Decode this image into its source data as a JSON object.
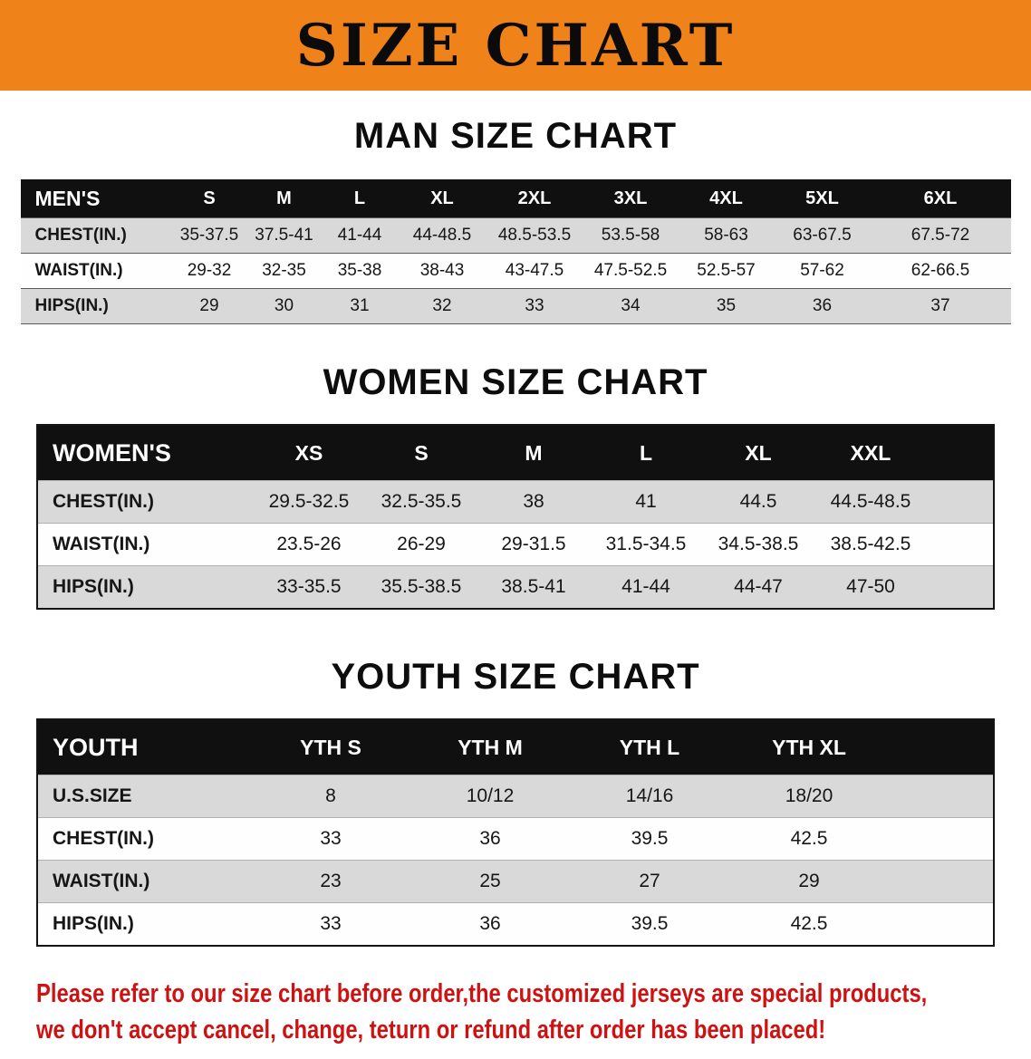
{
  "banner": {
    "title": "SIZE CHART"
  },
  "sections": {
    "men": {
      "heading": "MAN SIZE CHART"
    },
    "women": {
      "heading": "WOMEN SIZE CHART"
    },
    "youth": {
      "heading": "YOUTH SIZE CHART"
    }
  },
  "tables": {
    "men": {
      "header": [
        "MEN'S",
        "S",
        "M",
        "L",
        "XL",
        "2XL",
        "3XL",
        "4XL",
        "5XL",
        "6XL"
      ],
      "rows": [
        {
          "label": "CHEST(IN.)",
          "values": [
            "35-37.5",
            "37.5-41",
            "41-44",
            "44-48.5",
            "48.5-53.5",
            "53.5-58",
            "58-63",
            "63-67.5",
            "67.5-72"
          ]
        },
        {
          "label": "WAIST(IN.)",
          "values": [
            "29-32",
            "32-35",
            "35-38",
            "38-43",
            "43-47.5",
            "47.5-52.5",
            "52.5-57",
            "57-62",
            "62-66.5"
          ]
        },
        {
          "label": "HIPS(IN.)",
          "values": [
            "29",
            "30",
            "31",
            "32",
            "33",
            "34",
            "35",
            "36",
            "37"
          ]
        }
      ]
    },
    "women": {
      "header": [
        "WOMEN'S",
        "XS",
        "S",
        "M",
        "L",
        "XL",
        "XXL"
      ],
      "rows": [
        {
          "label": "CHEST(IN.)",
          "values": [
            "29.5-32.5",
            "32.5-35.5",
            "38",
            "41",
            "44.5",
            "44.5-48.5"
          ]
        },
        {
          "label": "WAIST(IN.)",
          "values": [
            "23.5-26",
            "26-29",
            "29-31.5",
            "31.5-34.5",
            "34.5-38.5",
            "38.5-42.5"
          ]
        },
        {
          "label": "HIPS(IN.)",
          "values": [
            "33-35.5",
            "35.5-38.5",
            "38.5-41",
            "41-44",
            "44-47",
            "47-50"
          ]
        }
      ]
    },
    "youth": {
      "header": [
        "YOUTH",
        "YTH S",
        "YTH M",
        "YTH L",
        "YTH XL"
      ],
      "rows": [
        {
          "label": "U.S.SIZE",
          "values": [
            "8",
            "10/12",
            "14/16",
            "18/20"
          ]
        },
        {
          "label": "CHEST(IN.)",
          "values": [
            "33",
            "36",
            "39.5",
            "42.5"
          ]
        },
        {
          "label": "WAIST(IN.)",
          "values": [
            "23",
            "25",
            "27",
            "29"
          ]
        },
        {
          "label": "HIPS(IN.)",
          "values": [
            "33",
            "36",
            "39.5",
            "42.5"
          ]
        }
      ]
    }
  },
  "footer": {
    "line1": "Please refer to our size chart before order,the customized jerseys are special products,",
    "line2": "we don't accept cancel, change, teturn or refund after order has been placed!"
  },
  "colors": {
    "banner_orange": "#EF8219",
    "header_black": "#101010",
    "stripe_gray": "#D9D9D9",
    "footer_red": "#CE1212"
  }
}
